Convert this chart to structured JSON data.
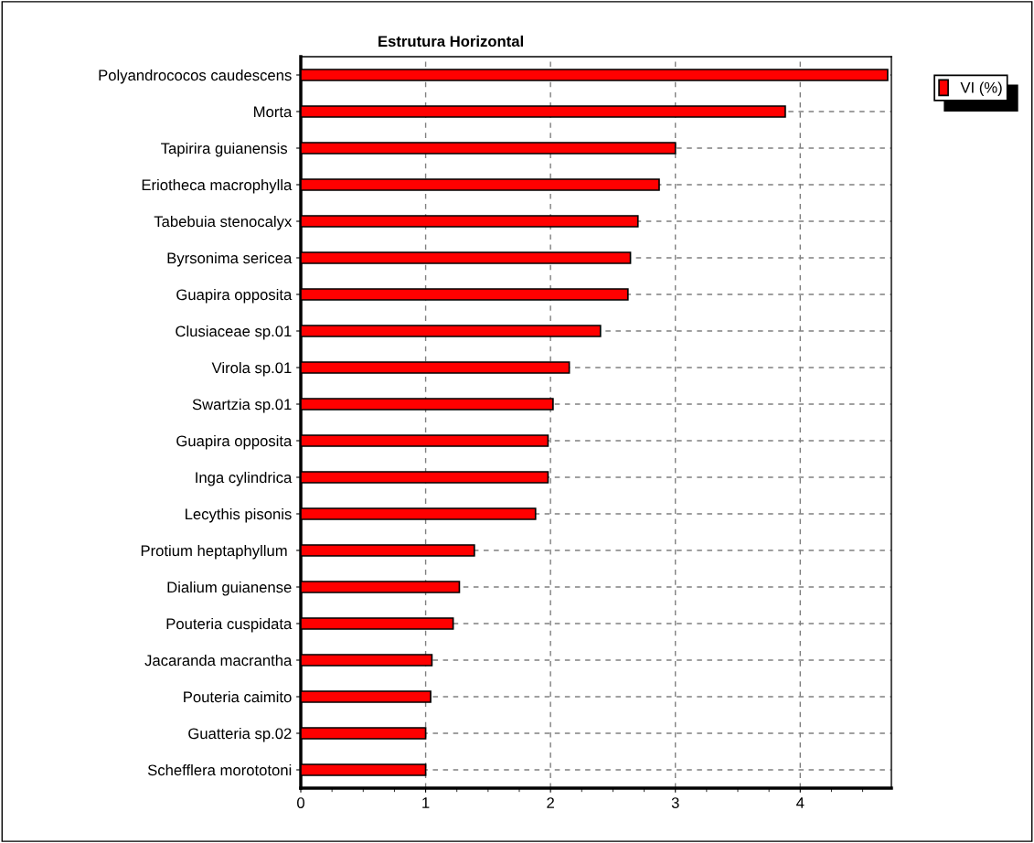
{
  "chart_data": {
    "type": "bar",
    "orientation": "horizontal",
    "title": "Estrutura Horizontal",
    "categories": [
      "Polyandrococos caudescens",
      "Morta",
      "Tapirira guianensis ",
      "Eriotheca macrophylla",
      "Tabebuia stenocalyx",
      "Byrsonima sericea",
      "Guapira opposita",
      "Clusiaceae sp.01",
      "Virola sp.01",
      "Swartzia sp.01",
      "Guapira opposita",
      "Inga cylindrica",
      "Lecythis pisonis",
      "Protium heptaphyllum ",
      "Dialium guianense",
      "Pouteria cuspidata",
      "Jacaranda macrantha",
      "Pouteria caimito",
      "Guatteria sp.02",
      "Schefflera morototoni"
    ],
    "series": [
      {
        "name": "VI (%)",
        "color": "#ff0000",
        "values": [
          4.7,
          3.88,
          3.0,
          2.87,
          2.7,
          2.64,
          2.62,
          2.4,
          2.15,
          2.02,
          1.98,
          1.98,
          1.88,
          1.39,
          1.27,
          1.22,
          1.05,
          1.04,
          1.0,
          1.0
        ]
      }
    ],
    "xlim": [
      0,
      4.73
    ],
    "xticks": [
      0,
      1,
      2,
      3,
      4
    ],
    "grid": true,
    "legend": "top right"
  }
}
